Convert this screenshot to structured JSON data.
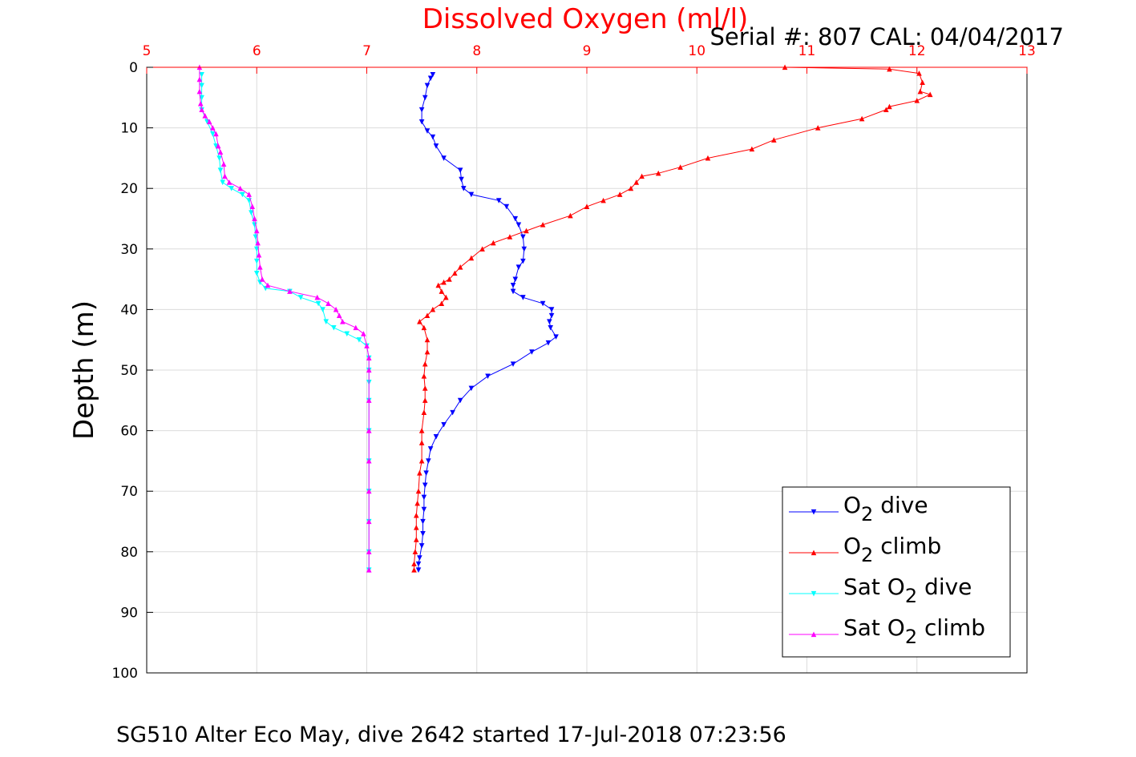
{
  "chart_data": {
    "type": "line",
    "title": "Dissolved Oxygen (ml/l)",
    "annotation": "Serial #: 807  CAL: 04/04/2017",
    "footer": "SG510 Alter Eco May, dive 2642 started 17-Jul-2018 07:23:56",
    "xlabel": "",
    "ylabel": "Depth (m)",
    "xlim": [
      5,
      13
    ],
    "ylim": [
      0,
      100
    ],
    "y_reversed": true,
    "x_axis_position": "top",
    "x_ticks": [
      "5",
      "6",
      "7",
      "8",
      "9",
      "10",
      "11",
      "12",
      "13"
    ],
    "y_ticks": [
      "0",
      "10",
      "20",
      "30",
      "40",
      "50",
      "60",
      "70",
      "80",
      "90",
      "100"
    ],
    "grid": true,
    "legend_position": "bottom-right",
    "series": [
      {
        "name": "O2 dive",
        "legend_main": "O",
        "legend_sub": "2",
        "legend_suffix": " dive",
        "color": "#0000ff",
        "marker": "triangle-down",
        "points": [
          [
            7.6,
            1.2
          ],
          [
            7.58,
            1.8
          ],
          [
            7.55,
            3
          ],
          [
            7.53,
            5
          ],
          [
            7.5,
            7
          ],
          [
            7.5,
            9
          ],
          [
            7.55,
            10.5
          ],
          [
            7.6,
            11.5
          ],
          [
            7.63,
            13
          ],
          [
            7.7,
            15
          ],
          [
            7.85,
            17
          ],
          [
            7.86,
            18.5
          ],
          [
            7.88,
            20
          ],
          [
            7.95,
            21
          ],
          [
            8.2,
            22
          ],
          [
            8.27,
            23
          ],
          [
            8.35,
            25
          ],
          [
            8.38,
            26
          ],
          [
            8.42,
            28
          ],
          [
            8.43,
            30
          ],
          [
            8.42,
            32
          ],
          [
            8.38,
            33
          ],
          [
            8.35,
            35
          ],
          [
            8.33,
            36
          ],
          [
            8.33,
            37
          ],
          [
            8.42,
            38
          ],
          [
            8.6,
            39
          ],
          [
            8.68,
            40
          ],
          [
            8.68,
            41
          ],
          [
            8.66,
            42
          ],
          [
            8.67,
            43
          ],
          [
            8.72,
            44.5
          ],
          [
            8.65,
            45.5
          ],
          [
            8.5,
            47
          ],
          [
            8.33,
            49
          ],
          [
            8.1,
            51
          ],
          [
            7.95,
            53
          ],
          [
            7.85,
            55
          ],
          [
            7.78,
            57
          ],
          [
            7.7,
            59
          ],
          [
            7.63,
            61
          ],
          [
            7.58,
            63
          ],
          [
            7.56,
            65
          ],
          [
            7.54,
            67
          ],
          [
            7.53,
            69
          ],
          [
            7.52,
            71
          ],
          [
            7.52,
            73
          ],
          [
            7.51,
            75
          ],
          [
            7.51,
            77
          ],
          [
            7.5,
            79
          ],
          [
            7.48,
            81
          ],
          [
            7.47,
            82
          ],
          [
            7.47,
            83
          ]
        ]
      },
      {
        "name": "O2 climb",
        "legend_main": "O",
        "legend_sub": "2",
        "legend_suffix": " climb",
        "color": "#ff0000",
        "marker": "triangle-up",
        "points": [
          [
            10.8,
            0
          ],
          [
            11.75,
            0.3
          ],
          [
            12.02,
            1
          ],
          [
            12.05,
            2.5
          ],
          [
            12.03,
            4
          ],
          [
            12.12,
            4.5
          ],
          [
            12.0,
            5.5
          ],
          [
            11.75,
            6.5
          ],
          [
            11.72,
            7
          ],
          [
            11.5,
            8.5
          ],
          [
            11.1,
            10
          ],
          [
            10.7,
            12
          ],
          [
            10.5,
            13.5
          ],
          [
            10.1,
            15
          ],
          [
            9.85,
            16.5
          ],
          [
            9.65,
            17.5
          ],
          [
            9.5,
            18
          ],
          [
            9.45,
            19
          ],
          [
            9.4,
            20
          ],
          [
            9.3,
            21
          ],
          [
            9.15,
            22
          ],
          [
            9.0,
            23
          ],
          [
            8.85,
            24.5
          ],
          [
            8.6,
            26
          ],
          [
            8.45,
            27
          ],
          [
            8.3,
            28
          ],
          [
            8.15,
            29
          ],
          [
            8.05,
            30
          ],
          [
            7.95,
            31.5
          ],
          [
            7.85,
            33
          ],
          [
            7.8,
            34
          ],
          [
            7.75,
            35
          ],
          [
            7.7,
            35.5
          ],
          [
            7.65,
            36
          ],
          [
            7.68,
            37
          ],
          [
            7.72,
            38
          ],
          [
            7.68,
            39
          ],
          [
            7.6,
            40
          ],
          [
            7.55,
            41
          ],
          [
            7.48,
            42
          ],
          [
            7.52,
            43
          ],
          [
            7.55,
            45
          ],
          [
            7.55,
            47
          ],
          [
            7.53,
            49
          ],
          [
            7.52,
            51
          ],
          [
            7.53,
            53
          ],
          [
            7.53,
            55
          ],
          [
            7.52,
            57
          ],
          [
            7.5,
            60
          ],
          [
            7.5,
            62
          ],
          [
            7.5,
            65
          ],
          [
            7.48,
            67
          ],
          [
            7.47,
            70
          ],
          [
            7.46,
            72
          ],
          [
            7.45,
            74
          ],
          [
            7.45,
            76
          ],
          [
            7.45,
            78
          ],
          [
            7.44,
            80
          ],
          [
            7.43,
            82
          ],
          [
            7.43,
            83
          ]
        ]
      },
      {
        "name": "Sat O2 dive",
        "legend_main": "Sat O",
        "legend_sub": "2",
        "legend_suffix": " dive",
        "color": "#00ffff",
        "marker": "triangle-down",
        "points": [
          [
            5.5,
            1.2
          ],
          [
            5.5,
            3
          ],
          [
            5.5,
            5
          ],
          [
            5.5,
            7
          ],
          [
            5.55,
            9
          ],
          [
            5.6,
            11
          ],
          [
            5.63,
            13
          ],
          [
            5.66,
            15
          ],
          [
            5.67,
            17
          ],
          [
            5.69,
            19
          ],
          [
            5.77,
            20
          ],
          [
            5.87,
            21
          ],
          [
            5.93,
            22
          ],
          [
            5.95,
            24
          ],
          [
            5.98,
            26
          ],
          [
            5.99,
            28
          ],
          [
            6.0,
            30
          ],
          [
            6.0,
            32
          ],
          [
            6.0,
            34
          ],
          [
            6.03,
            35.5
          ],
          [
            6.08,
            36.5
          ],
          [
            6.3,
            37
          ],
          [
            6.4,
            38
          ],
          [
            6.56,
            39
          ],
          [
            6.6,
            40
          ],
          [
            6.63,
            42
          ],
          [
            6.7,
            43
          ],
          [
            6.82,
            44
          ],
          [
            6.93,
            45
          ],
          [
            7.0,
            46
          ],
          [
            7.02,
            48
          ],
          [
            7.02,
            50
          ],
          [
            7.02,
            52
          ],
          [
            7.02,
            55
          ],
          [
            7.02,
            60
          ],
          [
            7.02,
            65
          ],
          [
            7.02,
            70
          ],
          [
            7.02,
            75
          ],
          [
            7.02,
            80
          ],
          [
            7.02,
            83
          ]
        ]
      },
      {
        "name": "Sat O2 climb",
        "legend_main": "Sat O",
        "legend_sub": "2",
        "legend_suffix": " climb",
        "color": "#ff00ff",
        "marker": "triangle-up",
        "points": [
          [
            5.48,
            0
          ],
          [
            5.48,
            2
          ],
          [
            5.48,
            4
          ],
          [
            5.49,
            6
          ],
          [
            5.5,
            7
          ],
          [
            5.53,
            8
          ],
          [
            5.57,
            9
          ],
          [
            5.6,
            10
          ],
          [
            5.63,
            11
          ],
          [
            5.65,
            13
          ],
          [
            5.67,
            14
          ],
          [
            5.7,
            16
          ],
          [
            5.71,
            18
          ],
          [
            5.75,
            19
          ],
          [
            5.85,
            20
          ],
          [
            5.93,
            21
          ],
          [
            5.96,
            23
          ],
          [
            5.98,
            25
          ],
          [
            6.0,
            27
          ],
          [
            6.01,
            29
          ],
          [
            6.02,
            31
          ],
          [
            6.03,
            33
          ],
          [
            6.05,
            35
          ],
          [
            6.1,
            36
          ],
          [
            6.3,
            37
          ],
          [
            6.55,
            38
          ],
          [
            6.65,
            39
          ],
          [
            6.72,
            40
          ],
          [
            6.75,
            41
          ],
          [
            6.78,
            42
          ],
          [
            6.9,
            43
          ],
          [
            6.97,
            44
          ],
          [
            7.0,
            46
          ],
          [
            7.02,
            48
          ],
          [
            7.02,
            50
          ],
          [
            7.02,
            55
          ],
          [
            7.02,
            60
          ],
          [
            7.02,
            65
          ],
          [
            7.02,
            70
          ],
          [
            7.02,
            75
          ],
          [
            7.02,
            80
          ],
          [
            7.02,
            83
          ]
        ]
      }
    ]
  }
}
